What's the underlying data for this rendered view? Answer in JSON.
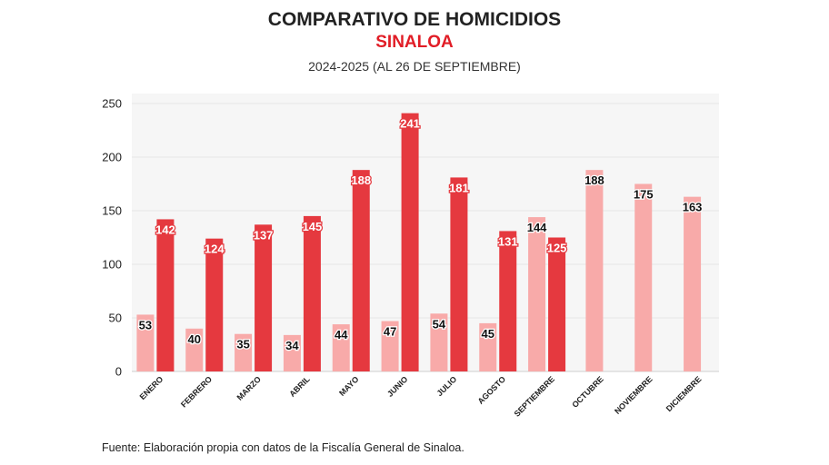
{
  "header": {
    "title": "COMPARATIVO DE HOMICIDIOS",
    "subtitle": "SINALOA",
    "period": "2024-2025 (AL 26 DE SEPTIEMBRE)"
  },
  "footer": {
    "source": "Fuente: Elaboración propia con datos de la Fiscalía General de Sinaloa."
  },
  "colors": {
    "series_2024": "#f8aaa9",
    "series_2025": "#e5393f",
    "plot_bg": "#f6f6f6",
    "grid": "#e6e6e6",
    "title": "#222222",
    "subtitle": "#e11d26"
  },
  "chart_data": {
    "type": "bar",
    "title": "COMPARATIVO DE HOMICIDIOS",
    "subtitle": "SINALOA",
    "xlabel": "",
    "ylabel": "",
    "ylim": [
      0,
      250
    ],
    "yticks": [
      0,
      50,
      100,
      150,
      200,
      250
    ],
    "grid": true,
    "legend": "none",
    "categories": [
      "ENERO",
      "FEBRERO",
      "MARZO",
      "ABRIL",
      "MAYO",
      "JUNIO",
      "JULIO",
      "AGOSTO",
      "SEPTIEMBRE",
      "OCTUBRE",
      "NOVIEMBRE",
      "DICIEMBRE"
    ],
    "series": [
      {
        "values": [
          53,
          40,
          35,
          34,
          44,
          47,
          54,
          45,
          144,
          188,
          175,
          163
        ]
      },
      {
        "values": [
          142,
          124,
          137,
          145,
          188,
          241,
          181,
          131,
          125,
          null,
          null,
          null
        ]
      }
    ]
  }
}
